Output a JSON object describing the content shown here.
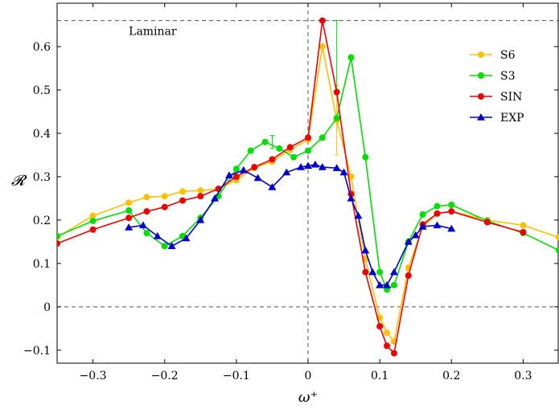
{
  "chart_data": {
    "type": "line",
    "title": "",
    "xlabel": "ω⁺",
    "ylabel": "𝓡",
    "xlim": [
      -0.35,
      0.35
    ],
    "ylim": [
      -0.13,
      0.7
    ],
    "xticks": [
      -0.3,
      -0.2,
      -0.1,
      0,
      0.1,
      0.2,
      0.3
    ],
    "xtick_labels": [
      "−0.3",
      "−0.2",
      "−0.1",
      "0",
      "0.1",
      "0.2",
      "0.3"
    ],
    "yticks": [
      -0.1,
      0,
      0.1,
      0.2,
      0.3,
      0.4,
      0.5,
      0.6
    ],
    "ytick_labels": [
      "−0.1",
      "0",
      "0.1",
      "0.2",
      "0.3",
      "0.4",
      "0.5",
      "0.6"
    ],
    "grid": false,
    "legend_position": "top-right",
    "reference_lines": [
      {
        "orientation": "horizontal",
        "value": 0.66,
        "label": "Laminar"
      },
      {
        "orientation": "horizontal",
        "value": 0,
        "label": ""
      },
      {
        "orientation": "vertical",
        "value": 0,
        "label": ""
      }
    ],
    "series": [
      {
        "name": "S6",
        "color": "#ffc000",
        "marker": "circle",
        "x": [
          -0.35,
          -0.3,
          -0.25,
          -0.225,
          -0.2,
          -0.175,
          -0.15,
          -0.125,
          -0.1,
          -0.075,
          -0.05,
          -0.025,
          0,
          0.02,
          0.04,
          0.06,
          0.08,
          0.1,
          0.11,
          0.12,
          0.14,
          0.16,
          0.18,
          0.2,
          0.25,
          0.3,
          0.35
        ],
        "y": [
          0.16,
          0.21,
          0.24,
          0.253,
          0.255,
          0.266,
          0.268,
          0.272,
          0.292,
          0.32,
          0.335,
          0.362,
          0.385,
          0.6,
          0.43,
          0.3,
          0.11,
          -0.025,
          -0.06,
          -0.08,
          0.09,
          0.185,
          0.215,
          0.22,
          0.2,
          0.188,
          0.16
        ],
        "error_bars": [
          {
            "x": 0.04,
            "low": 0.35,
            "high": 0.51
          }
        ]
      },
      {
        "name": "S3",
        "color": "#00dd00",
        "marker": "circle",
        "x": [
          -0.35,
          -0.3,
          -0.25,
          -0.225,
          -0.2,
          -0.175,
          -0.15,
          -0.125,
          -0.1,
          -0.08,
          -0.06,
          -0.04,
          -0.02,
          0,
          0.02,
          0.04,
          0.06,
          0.08,
          0.1,
          0.11,
          0.12,
          0.14,
          0.16,
          0.18,
          0.2,
          0.25,
          0.3,
          0.35
        ],
        "y": [
          0.163,
          0.198,
          0.222,
          0.17,
          0.14,
          0.163,
          0.205,
          0.255,
          0.318,
          0.36,
          0.38,
          0.365,
          0.345,
          0.36,
          0.39,
          0.435,
          0.575,
          0.345,
          0.08,
          0.04,
          0.05,
          0.15,
          0.213,
          0.232,
          0.235,
          0.198,
          0.17,
          0.13
        ],
        "error_bars": [
          {
            "x": 0.04,
            "low": 0.5,
            "high": 0.66
          },
          {
            "x": -0.05,
            "low": 0.365,
            "high": 0.395
          }
        ]
      },
      {
        "name": "SIN",
        "color": "#ee0000",
        "marker": "circle",
        "x": [
          -0.35,
          -0.3,
          -0.25,
          -0.225,
          -0.2,
          -0.175,
          -0.15,
          -0.125,
          -0.1,
          -0.075,
          -0.05,
          -0.025,
          0,
          0.02,
          0.04,
          0.06,
          0.08,
          0.1,
          0.11,
          0.12,
          0.14,
          0.16,
          0.18,
          0.2,
          0.25,
          0.3
        ],
        "y": [
          0.146,
          0.178,
          0.205,
          0.22,
          0.23,
          0.245,
          0.255,
          0.272,
          0.3,
          0.322,
          0.34,
          0.368,
          0.39,
          0.66,
          0.495,
          0.26,
          0.08,
          -0.045,
          -0.09,
          -0.107,
          0.072,
          0.19,
          0.215,
          0.22,
          0.195,
          0.172
        ]
      },
      {
        "name": "EXP",
        "color": "#0000cc",
        "marker": "triangle",
        "x": [
          -0.25,
          -0.23,
          -0.21,
          -0.19,
          -0.17,
          -0.15,
          -0.13,
          -0.11,
          -0.09,
          -0.07,
          -0.05,
          -0.03,
          -0.01,
          0,
          0.01,
          0.02,
          0.04,
          0.05,
          0.06,
          0.07,
          0.08,
          0.09,
          0.1,
          0.11,
          0.12,
          0.14,
          0.15,
          0.16,
          0.18,
          0.2
        ],
        "y": [
          0.183,
          0.188,
          0.163,
          0.14,
          0.158,
          0.2,
          0.25,
          0.303,
          0.315,
          0.297,
          0.276,
          0.31,
          0.322,
          0.325,
          0.328,
          0.322,
          0.32,
          0.31,
          0.25,
          0.21,
          0.13,
          0.08,
          0.05,
          0.05,
          0.08,
          0.15,
          0.165,
          0.185,
          0.188,
          0.18
        ]
      }
    ]
  }
}
